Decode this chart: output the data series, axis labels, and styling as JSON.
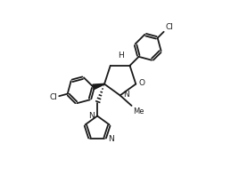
{
  "bg_color": "#ffffff",
  "line_color": "#1a1a1a",
  "line_width": 1.3,
  "figsize": [
    2.59,
    2.06
  ],
  "dpi": 100,
  "xlim": [
    0,
    10
  ],
  "ylim": [
    0,
    8
  ]
}
